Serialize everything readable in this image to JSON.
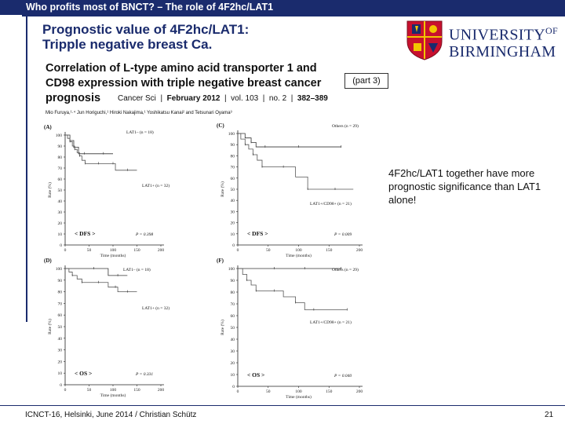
{
  "header": {
    "breadcrumb": "Who profits most of BNCT? – The role of 4F2hc/LAT1"
  },
  "slide": {
    "title_line1": "Prognostic value of 4F2hc/LAT1:",
    "title_line2": "Tripple negative breast Ca.",
    "part_label": "(part 3)",
    "comment": "4F2hc/LAT1 together have more prognostic significance than LAT1 alone!"
  },
  "logo": {
    "line1": "UNIVERSITY",
    "line1_sup": "OF",
    "line2": "BIRMINGHAM",
    "crest": "university-crest"
  },
  "paper": {
    "title_line1": "Correlation of L-type amino acid transporter 1 and",
    "title_line2": "CD98 expression with triple negative breast cancer",
    "title_line3": "prognosis",
    "journal": "Cancer Sci",
    "date": "February 2012",
    "volume": "vol. 103",
    "issue": "no. 2",
    "pages": "382–389",
    "authors": "Mio Furuya,¹·⁴ Jun Horiguchi,¹ Hiroki Nakajima,¹ Yoshikatsu Kanai² and Tetsunari Oyama³"
  },
  "footer": {
    "left": "ICNCT-16, Helsinki, June 2014 / Christian Schütz",
    "page": "21"
  },
  "chart_data": [
    {
      "type": "line",
      "panel": "(A)",
      "tag": "< DFS >",
      "p_value": "P = 0.398",
      "xlabel": "Time (months)",
      "ylabel": "Rate (%)",
      "xlim": [
        0,
        200
      ],
      "ylim": [
        0,
        100
      ],
      "xticks": [
        0,
        50,
        100,
        150,
        200
      ],
      "yticks": [
        0,
        10,
        20,
        30,
        40,
        50,
        60,
        70,
        80,
        90,
        100
      ],
      "series": [
        {
          "name": "LAT1– (n = 18)",
          "points": [
            [
              0,
              100
            ],
            [
              10,
              95
            ],
            [
              18,
              89
            ],
            [
              28,
              83
            ],
            [
              40,
              83
            ],
            [
              60,
              83
            ],
            [
              80,
              83
            ],
            [
              100,
              83
            ]
          ]
        },
        {
          "name": "LAT1+ (n = 32)",
          "points": [
            [
              0,
              100
            ],
            [
              5,
              97
            ],
            [
              10,
              94
            ],
            [
              15,
              90
            ],
            [
              20,
              87
            ],
            [
              25,
              84
            ],
            [
              30,
              81
            ],
            [
              35,
              77
            ],
            [
              42,
              74
            ],
            [
              55,
              74
            ],
            [
              70,
              74
            ],
            [
              90,
              74
            ],
            [
              100,
              74
            ],
            [
              105,
              68
            ],
            [
              130,
              68
            ],
            [
              150,
              68
            ]
          ]
        }
      ]
    },
    {
      "type": "line",
      "panel": "(C)",
      "tag": "< DFS >",
      "p_value": "P = 0.009",
      "xlabel": "Time (months)",
      "ylabel": "Rate (%)",
      "xlim": [
        0,
        200
      ],
      "ylim": [
        0,
        100
      ],
      "xticks": [
        0,
        50,
        100,
        150,
        200
      ],
      "yticks": [
        0,
        10,
        20,
        30,
        40,
        50,
        60,
        70,
        80,
        90,
        100
      ],
      "series": [
        {
          "name": "Others (n = 29)",
          "points": [
            [
              0,
              100
            ],
            [
              12,
              96
            ],
            [
              22,
              92
            ],
            [
              30,
              88
            ],
            [
              45,
              88
            ],
            [
              70,
              88
            ],
            [
              100,
              88
            ],
            [
              130,
              88
            ],
            [
              170,
              88
            ]
          ]
        },
        {
          "name": "LAT1+/CD98+ (n = 21)",
          "points": [
            [
              0,
              100
            ],
            [
              5,
              95
            ],
            [
              12,
              90
            ],
            [
              18,
              86
            ],
            [
              25,
              81
            ],
            [
              32,
              76
            ],
            [
              40,
              70
            ],
            [
              55,
              70
            ],
            [
              75,
              70
            ],
            [
              95,
              61
            ],
            [
              115,
              50
            ],
            [
              135,
              50
            ],
            [
              160,
              50
            ],
            [
              190,
              50
            ]
          ]
        }
      ]
    },
    {
      "type": "line",
      "panel": "(D)",
      "tag": "< OS >",
      "p_value": "P = 0.331",
      "xlabel": "Time (months)",
      "ylabel": "Rate (%)",
      "xlim": [
        0,
        200
      ],
      "ylim": [
        0,
        100
      ],
      "xticks": [
        0,
        50,
        100,
        150,
        200
      ],
      "yticks": [
        0,
        10,
        20,
        30,
        40,
        50,
        60,
        70,
        80,
        90,
        100
      ],
      "series": [
        {
          "name": "LAT1– (n = 18)",
          "points": [
            [
              0,
              100
            ],
            [
              30,
              100
            ],
            [
              60,
              100
            ],
            [
              90,
              94
            ],
            [
              110,
              94
            ],
            [
              130,
              94
            ]
          ]
        },
        {
          "name": "LAT1+ (n = 32)",
          "points": [
            [
              0,
              100
            ],
            [
              8,
              97
            ],
            [
              15,
              94
            ],
            [
              25,
              91
            ],
            [
              35,
              88
            ],
            [
              50,
              88
            ],
            [
              70,
              88
            ],
            [
              90,
              84
            ],
            [
              105,
              84
            ],
            [
              110,
              80
            ],
            [
              130,
              80
            ],
            [
              150,
              80
            ]
          ]
        }
      ]
    },
    {
      "type": "line",
      "panel": "(F)",
      "tag": "< OS >",
      "p_value": "P = 0.040",
      "xlabel": "Time (months)",
      "ylabel": "Rate (%)",
      "xlim": [
        0,
        200
      ],
      "ylim": [
        0,
        100
      ],
      "xticks": [
        0,
        50,
        100,
        150,
        200
      ],
      "yticks": [
        0,
        10,
        20,
        30,
        40,
        50,
        60,
        70,
        80,
        90,
        100
      ],
      "series": [
        {
          "name": "Others (n = 29)",
          "points": [
            [
              0,
              100
            ],
            [
              30,
              100
            ],
            [
              60,
              100
            ],
            [
              90,
              100
            ],
            [
              110,
              100
            ],
            [
              140,
              100
            ],
            [
              170,
              100
            ]
          ]
        },
        {
          "name": "LAT1+/CD98+ (n = 21)",
          "points": [
            [
              0,
              100
            ],
            [
              8,
              95
            ],
            [
              15,
              90
            ],
            [
              22,
              86
            ],
            [
              30,
              81
            ],
            [
              45,
              81
            ],
            [
              60,
              81
            ],
            [
              75,
              76
            ],
            [
              95,
              71
            ],
            [
              110,
              65
            ],
            [
              125,
              65
            ],
            [
              150,
              65
            ],
            [
              180,
              65
            ]
          ]
        }
      ]
    }
  ]
}
